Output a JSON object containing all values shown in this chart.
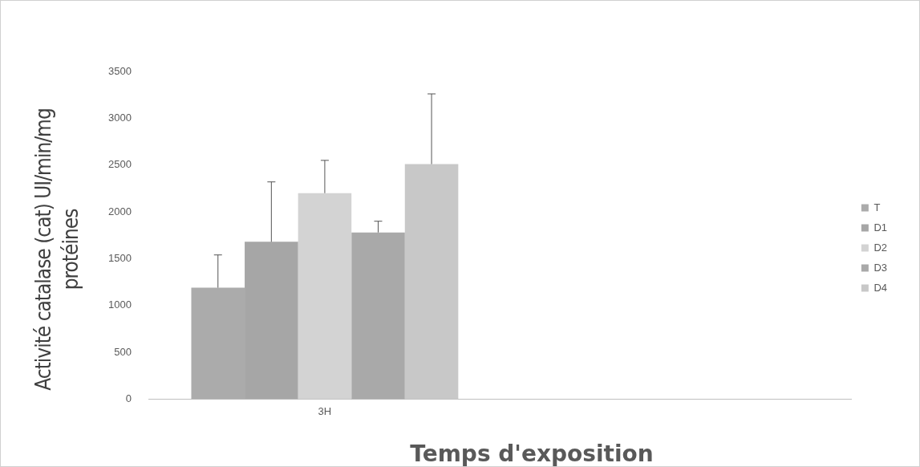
{
  "chart_data": {
    "type": "bar",
    "xlabel": "Temps d'exposition",
    "ylabel": "Activité catalase (cat) UI/min/mg protéines",
    "categories": [
      "3H",
      null
    ],
    "series": [
      {
        "name": "T",
        "color": "#ababab",
        "values": [
          1190,
          null
        ],
        "errors": [
          [
            1190,
            1540
          ],
          null
        ]
      },
      {
        "name": "D1",
        "color": "#a6a6a6",
        "values": [
          1680,
          null
        ],
        "errors": [
          [
            1680,
            2320
          ],
          null
        ]
      },
      {
        "name": "D2",
        "color": "#d3d3d3",
        "values": [
          2200,
          null
        ],
        "errors": [
          [
            2200,
            2550
          ],
          null
        ]
      },
      {
        "name": "D3",
        "color": "#a9a9a9",
        "values": [
          1780,
          null
        ],
        "errors": [
          [
            1780,
            1900
          ],
          null
        ]
      },
      {
        "name": "D4",
        "color": "#c8c8c8",
        "values": [
          2510,
          null
        ],
        "errors": [
          [
            2510,
            3260
          ],
          null
        ]
      }
    ],
    "ylim": [
      0,
      3500
    ],
    "yticks": [
      0,
      500,
      1000,
      1500,
      2000,
      2500,
      3000,
      3500
    ],
    "grid": false,
    "legend": "right"
  }
}
